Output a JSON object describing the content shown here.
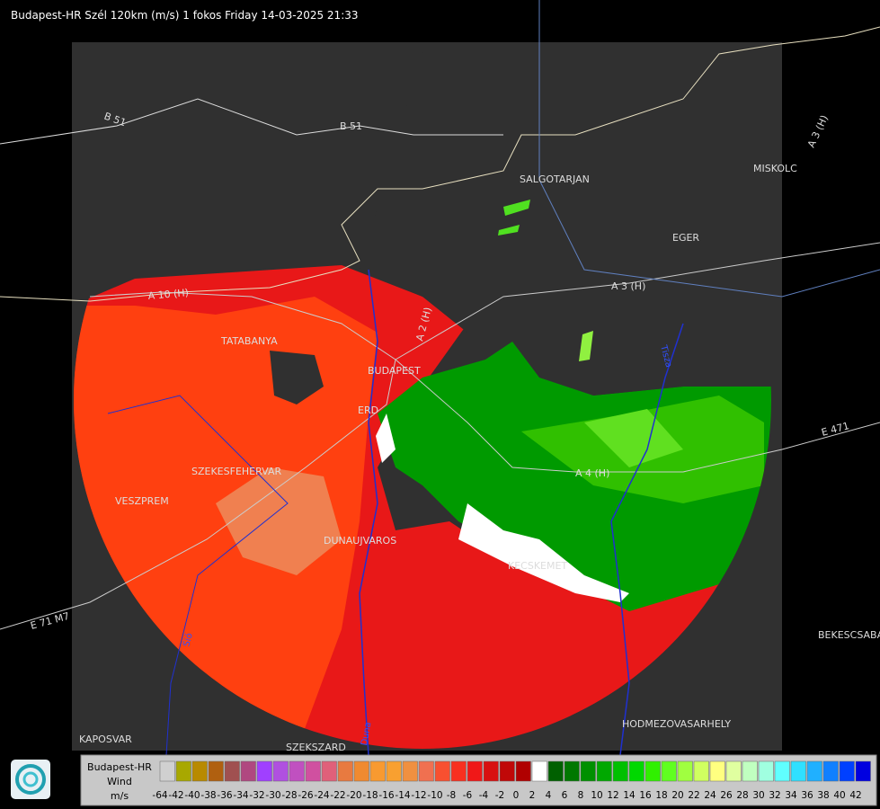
{
  "header": {
    "title": "Budapest-HR Szél 120km (m/s) 1 fokos Friday 14-03-2025 21:33"
  },
  "map_labels": [
    "B 51",
    "B 51",
    "SALGOTARJAN",
    "MISKOLC",
    "EGER",
    "A 3 (H)",
    "A 3 (H)",
    "A 10 (H)",
    "A 2 (H)",
    "TATABANYA",
    "BUDAPEST",
    "ERD",
    "SZEKESFEHERVAR",
    "VESZPREM",
    "DUNAUJVAROS",
    "KECSKEMET",
    "A 4 (H)",
    "E 471",
    "BEKESCSABA",
    "HODMEZOVASARHELY",
    "KAPOSVAR",
    "SZEKSZARD",
    "E 71 M7",
    "Duna",
    "Tisza",
    "Sió"
  ],
  "legend": {
    "title": [
      "Budapest-HR",
      "Wind",
      "m/s"
    ],
    "labels": [
      "-64",
      "-42",
      "-40",
      "-38",
      "-36",
      "-34",
      "-32",
      "-30",
      "-28",
      "-26",
      "-24",
      "-22",
      "-20",
      "-18",
      "-16",
      "-14",
      "-12",
      "-10",
      "-8",
      "-6",
      "-4",
      "-2",
      "0",
      "2",
      "4",
      "6",
      "8",
      "10",
      "12",
      "14",
      "16",
      "18",
      "20",
      "22",
      "24",
      "26",
      "28",
      "30",
      "32",
      "34",
      "36",
      "38",
      "40",
      "42"
    ],
    "colors": [
      "#d0d0d0",
      "#a8a800",
      "#b88a00",
      "#b06010",
      "#a05050",
      "#b04880",
      "#a040ff",
      "#b050e0",
      "#c050c0",
      "#d050a0",
      "#e0607a",
      "#e87a40",
      "#f08a30",
      "#f89a30",
      "#f8a030",
      "#f09040",
      "#f07050",
      "#f85030",
      "#f83020",
      "#f01818",
      "#d81010",
      "#c00808",
      "#b00000",
      "#ffffff",
      "#006000",
      "#007800",
      "#009000",
      "#00a800",
      "#00c000",
      "#00d800",
      "#30f000",
      "#60ff20",
      "#a0ff40",
      "#d0ff60",
      "#ffff80",
      "#e0ffa0",
      "#c0ffc0",
      "#a0ffe0",
      "#60ffff",
      "#30e0ff",
      "#20b0ff",
      "#1080ff",
      "#0040ff",
      "#0000e0"
    ]
  }
}
